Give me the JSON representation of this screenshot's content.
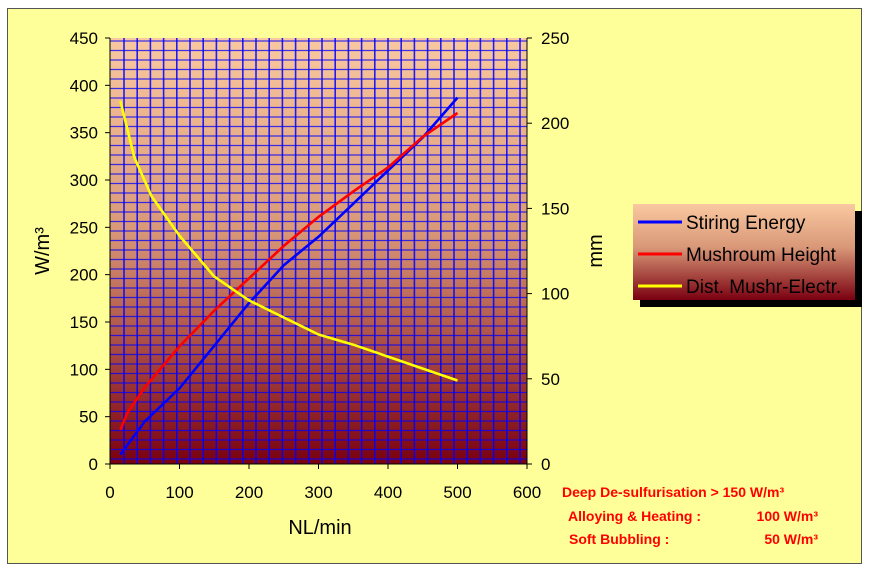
{
  "chart_data": {
    "type": "line",
    "xlabel": "NL/min",
    "ylabel": "W/m³",
    "y2label": "mm",
    "xlim": [
      0,
      600
    ],
    "ylim": [
      0,
      450
    ],
    "y2lim": [
      0,
      250
    ],
    "x_ticks": [
      "0",
      "100",
      "200",
      "300",
      "400",
      "500",
      "600"
    ],
    "y_ticks": [
      "0",
      "50",
      "100",
      "150",
      "200",
      "250",
      "300",
      "350",
      "400",
      "450"
    ],
    "y2_ticks": [
      "0",
      "50",
      "100",
      "150",
      "200",
      "250"
    ],
    "grid": true,
    "legend_position": "right",
    "series": [
      {
        "name": "Stiring Energy",
        "color": "#0000ff",
        "axis": "left",
        "points": [
          [
            15,
            10
          ],
          [
            50,
            45
          ],
          [
            100,
            80
          ],
          [
            150,
            125
          ],
          [
            200,
            170
          ],
          [
            250,
            210
          ],
          [
            300,
            240
          ],
          [
            350,
            275
          ],
          [
            400,
            310
          ],
          [
            450,
            345
          ],
          [
            500,
            387
          ]
        ]
      },
      {
        "name": "Mushroum Height",
        "color": "#ff0000",
        "axis": "right",
        "points": [
          [
            15,
            20
          ],
          [
            25,
            30
          ],
          [
            50,
            45
          ],
          [
            100,
            69
          ],
          [
            150,
            90
          ],
          [
            200,
            109
          ],
          [
            250,
            128
          ],
          [
            300,
            145
          ],
          [
            350,
            160
          ],
          [
            400,
            174
          ],
          [
            450,
            192
          ],
          [
            500,
            206
          ]
        ]
      },
      {
        "name": "Dist. Mushr-Electr.",
        "color": "#ffff00",
        "axis": "right",
        "points": [
          [
            15,
            213
          ],
          [
            35,
            180
          ],
          [
            60,
            157
          ],
          [
            100,
            134
          ],
          [
            150,
            110
          ],
          [
            200,
            96
          ],
          [
            250,
            86
          ],
          [
            300,
            76
          ],
          [
            350,
            70
          ],
          [
            400,
            63
          ],
          [
            450,
            56
          ],
          [
            500,
            49
          ]
        ]
      }
    ]
  },
  "notes": [
    {
      "label": "Deep De-sulfurisation > 150 W/m³",
      "value": ""
    },
    {
      "label": "Alloying & Heating :",
      "value": "100 W/m³"
    },
    {
      "label": "Soft Bubbling :",
      "value": "50 W/m³"
    }
  ],
  "colors": {
    "frame_background": "#ffff99",
    "plot_gradient_top": "#f9c8a0",
    "plot_gradient_bottom": "#7a0010",
    "grid": "#0000ff"
  }
}
